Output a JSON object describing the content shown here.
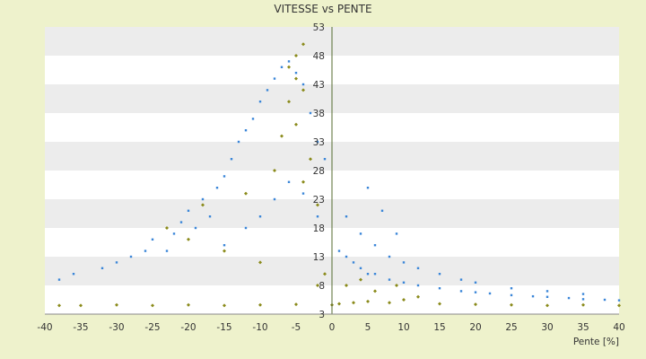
{
  "chart_data": {
    "type": "scatter",
    "title": "VITESSE vs PENTE",
    "xlabel": "Pente [%]",
    "ylabel": "",
    "xlim": [
      -40,
      40
    ],
    "ylim": [
      3,
      53
    ],
    "x_ticks": [
      -40,
      -35,
      -30,
      -25,
      -20,
      -15,
      -10,
      -5,
      0,
      5,
      10,
      15,
      20,
      25,
      30,
      35,
      40
    ],
    "y_ticks": [
      3,
      8,
      13,
      18,
      23,
      28,
      33,
      38,
      43,
      48,
      53
    ],
    "grid": "horizontal bands, alternating white and light grey",
    "legend": "none",
    "series": [
      {
        "color": "#3a86d8",
        "marker": "small dot",
        "values": [
          [
            -38,
            9
          ],
          [
            -36,
            10
          ],
          [
            -32,
            11
          ],
          [
            -30,
            12
          ],
          [
            -28,
            13
          ],
          [
            -26,
            14
          ],
          [
            -25,
            16
          ],
          [
            -23,
            14
          ],
          [
            -22,
            17
          ],
          [
            -21,
            19
          ],
          [
            -20,
            21
          ],
          [
            -19,
            18
          ],
          [
            -18,
            23
          ],
          [
            -17,
            20
          ],
          [
            -16,
            25
          ],
          [
            -15,
            27
          ],
          [
            -14,
            30
          ],
          [
            -13,
            33
          ],
          [
            -12,
            35
          ],
          [
            -11,
            37
          ],
          [
            -10,
            40
          ],
          [
            -9,
            42
          ],
          [
            -8,
            44
          ],
          [
            -7,
            46
          ],
          [
            -6,
            47
          ],
          [
            -5,
            45
          ],
          [
            -4,
            43
          ],
          [
            -3,
            38
          ],
          [
            -2,
            33
          ],
          [
            -1,
            30
          ],
          [
            -15,
            15
          ],
          [
            -12,
            18
          ],
          [
            -10,
            20
          ],
          [
            -8,
            23
          ],
          [
            -6,
            26
          ],
          [
            -4,
            24
          ],
          [
            -2,
            20
          ],
          [
            1,
            14
          ],
          [
            2,
            13
          ],
          [
            3,
            12
          ],
          [
            4,
            11
          ],
          [
            5,
            10
          ],
          [
            6,
            10
          ],
          [
            8,
            9
          ],
          [
            10,
            8.5
          ],
          [
            12,
            8
          ],
          [
            15,
            7.5
          ],
          [
            18,
            7
          ],
          [
            20,
            6.8
          ],
          [
            22,
            6.6
          ],
          [
            25,
            6.3
          ],
          [
            28,
            6.1
          ],
          [
            30,
            6
          ],
          [
            33,
            5.8
          ],
          [
            35,
            5.6
          ],
          [
            38,
            5.5
          ],
          [
            40,
            5.4
          ],
          [
            2,
            20
          ],
          [
            4,
            17
          ],
          [
            6,
            15
          ],
          [
            8,
            13
          ],
          [
            10,
            12
          ],
          [
            12,
            11
          ],
          [
            15,
            10
          ],
          [
            18,
            9
          ],
          [
            20,
            8.5
          ],
          [
            25,
            7.5
          ],
          [
            30,
            7
          ],
          [
            35,
            6.5
          ],
          [
            5,
            25
          ],
          [
            7,
            21
          ],
          [
            9,
            17
          ]
        ]
      },
      {
        "color": "#8a8a1a",
        "marker": "small diamond",
        "values": [
          [
            -38,
            4.5
          ],
          [
            -35,
            4.5
          ],
          [
            -30,
            4.6
          ],
          [
            -25,
            4.5
          ],
          [
            -20,
            4.6
          ],
          [
            -15,
            4.5
          ],
          [
            -10,
            4.6
          ],
          [
            -5,
            4.7
          ],
          [
            -4,
            50
          ],
          [
            -5,
            48
          ],
          [
            -6,
            46
          ],
          [
            -5,
            44
          ],
          [
            -4,
            42
          ],
          [
            -6,
            40
          ],
          [
            -5,
            36
          ],
          [
            -7,
            34
          ],
          [
            -3,
            30
          ],
          [
            -8,
            28
          ],
          [
            -4,
            26
          ],
          [
            -2,
            22
          ],
          [
            -20,
            16
          ],
          [
            -15,
            14
          ],
          [
            -10,
            12
          ],
          [
            -23,
            18
          ],
          [
            -18,
            22
          ],
          [
            -12,
            24
          ],
          [
            0,
            4.6
          ],
          [
            1,
            4.8
          ],
          [
            3,
            5
          ],
          [
            5,
            5.2
          ],
          [
            8,
            5
          ],
          [
            10,
            5.5
          ],
          [
            12,
            6
          ],
          [
            15,
            4.8
          ],
          [
            20,
            4.7
          ],
          [
            25,
            4.6
          ],
          [
            30,
            4.5
          ],
          [
            35,
            4.6
          ],
          [
            40,
            4.5
          ],
          [
            2,
            8
          ],
          [
            4,
            9
          ],
          [
            6,
            7
          ],
          [
            9,
            8
          ],
          [
            -1,
            10
          ],
          [
            -2,
            8
          ]
        ]
      }
    ]
  }
}
